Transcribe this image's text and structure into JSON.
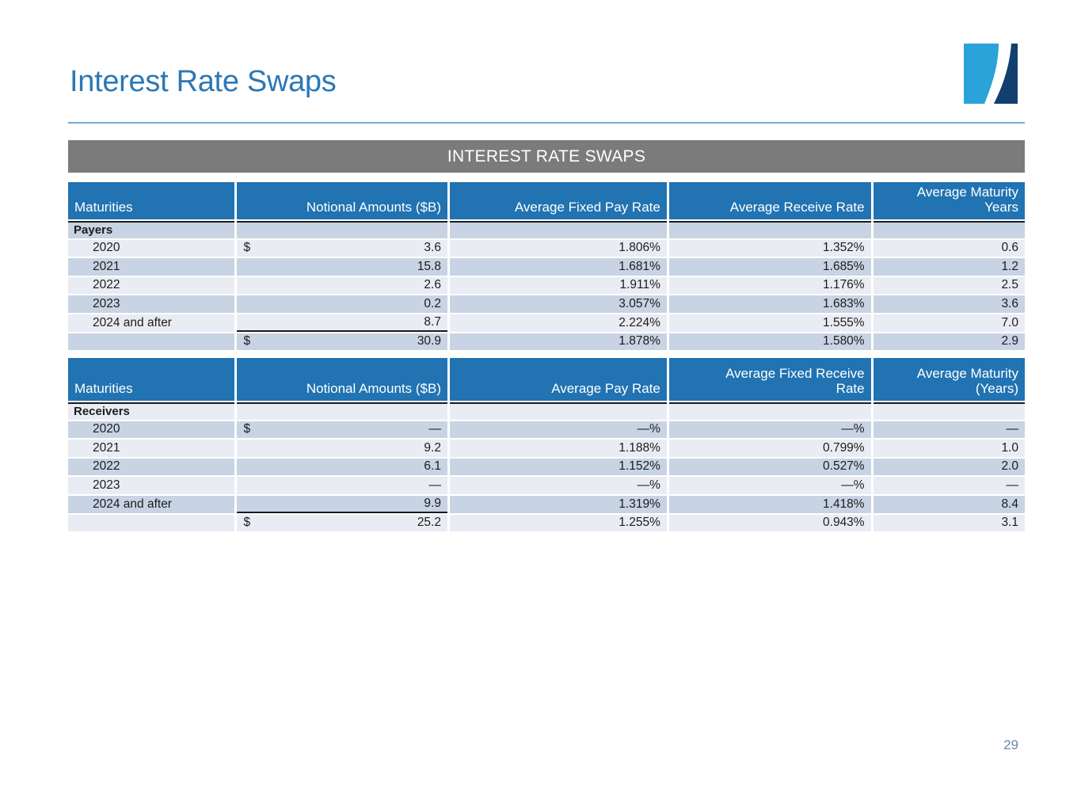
{
  "page": {
    "title": "Interest Rate Swaps",
    "banner": "INTEREST RATE SWAPS",
    "page_number": "29"
  },
  "colors": {
    "title_blue": "#2b78b6",
    "header_blue": "#2173b2",
    "banner_gray": "#7b7b7b",
    "row_dark": "#c8d3e4",
    "row_light": "#e9edf3",
    "logo_light_blue": "#29a3da",
    "logo_navy": "#123f6e",
    "rule_blue": "#74a9d3"
  },
  "tables": [
    {
      "id": "payers",
      "stripe_start": "dark",
      "columns": [
        "Maturities",
        "Notional Amounts ($B)",
        "Average Fixed Pay Rate",
        "Average Receive Rate",
        "Average Maturity\nYears"
      ],
      "rows": [
        {
          "type": "section",
          "label": "Payers",
          "cells": [
            "",
            "",
            "",
            ""
          ]
        },
        {
          "type": "data",
          "label": "2020",
          "dollar": "$",
          "cells": [
            "3.6",
            "1.806%",
            "1.352%",
            "0.6"
          ]
        },
        {
          "type": "data",
          "label": "2021",
          "cells": [
            "15.8",
            "1.681%",
            "1.685%",
            "1.2"
          ]
        },
        {
          "type": "data",
          "label": "2022",
          "cells": [
            "2.6",
            "1.911%",
            "1.176%",
            "2.5"
          ]
        },
        {
          "type": "data",
          "label": "2023",
          "cells": [
            "0.2",
            "3.057%",
            "1.683%",
            "3.6"
          ]
        },
        {
          "type": "data",
          "label": "2024 and after",
          "underline_notional": true,
          "cells": [
            "8.7",
            "2.224%",
            "1.555%",
            "7.0"
          ]
        },
        {
          "type": "total",
          "label": "",
          "dollar": "$",
          "cells": [
            "30.9",
            "1.878%",
            "1.580%",
            "2.9"
          ]
        }
      ]
    },
    {
      "id": "receivers",
      "stripe_start": "light",
      "columns": [
        "Maturities",
        "Notional Amounts ($B)",
        "Average Pay Rate",
        "Average Fixed Receive\nRate",
        "Average Maturity\n(Years)"
      ],
      "rows": [
        {
          "type": "section",
          "label": "Receivers",
          "cells": [
            "",
            "",
            "",
            ""
          ]
        },
        {
          "type": "data",
          "label": "2020",
          "dollar": "$",
          "cells": [
            "—",
            "—%",
            "—%",
            "—"
          ]
        },
        {
          "type": "data",
          "label": "2021",
          "cells": [
            "9.2",
            "1.188%",
            "0.799%",
            "1.0"
          ]
        },
        {
          "type": "data",
          "label": "2022",
          "cells": [
            "6.1",
            "1.152%",
            "0.527%",
            "2.0"
          ]
        },
        {
          "type": "data",
          "label": "2023",
          "cells": [
            "—",
            "—%",
            "—%",
            "—"
          ]
        },
        {
          "type": "data",
          "label": "2024 and after",
          "underline_notional": true,
          "cells": [
            "9.9",
            "1.319%",
            "1.418%",
            "8.4"
          ]
        },
        {
          "type": "total",
          "label": "",
          "dollar": "$",
          "cells": [
            "25.2",
            "1.255%",
            "0.943%",
            "3.1"
          ]
        }
      ]
    }
  ]
}
